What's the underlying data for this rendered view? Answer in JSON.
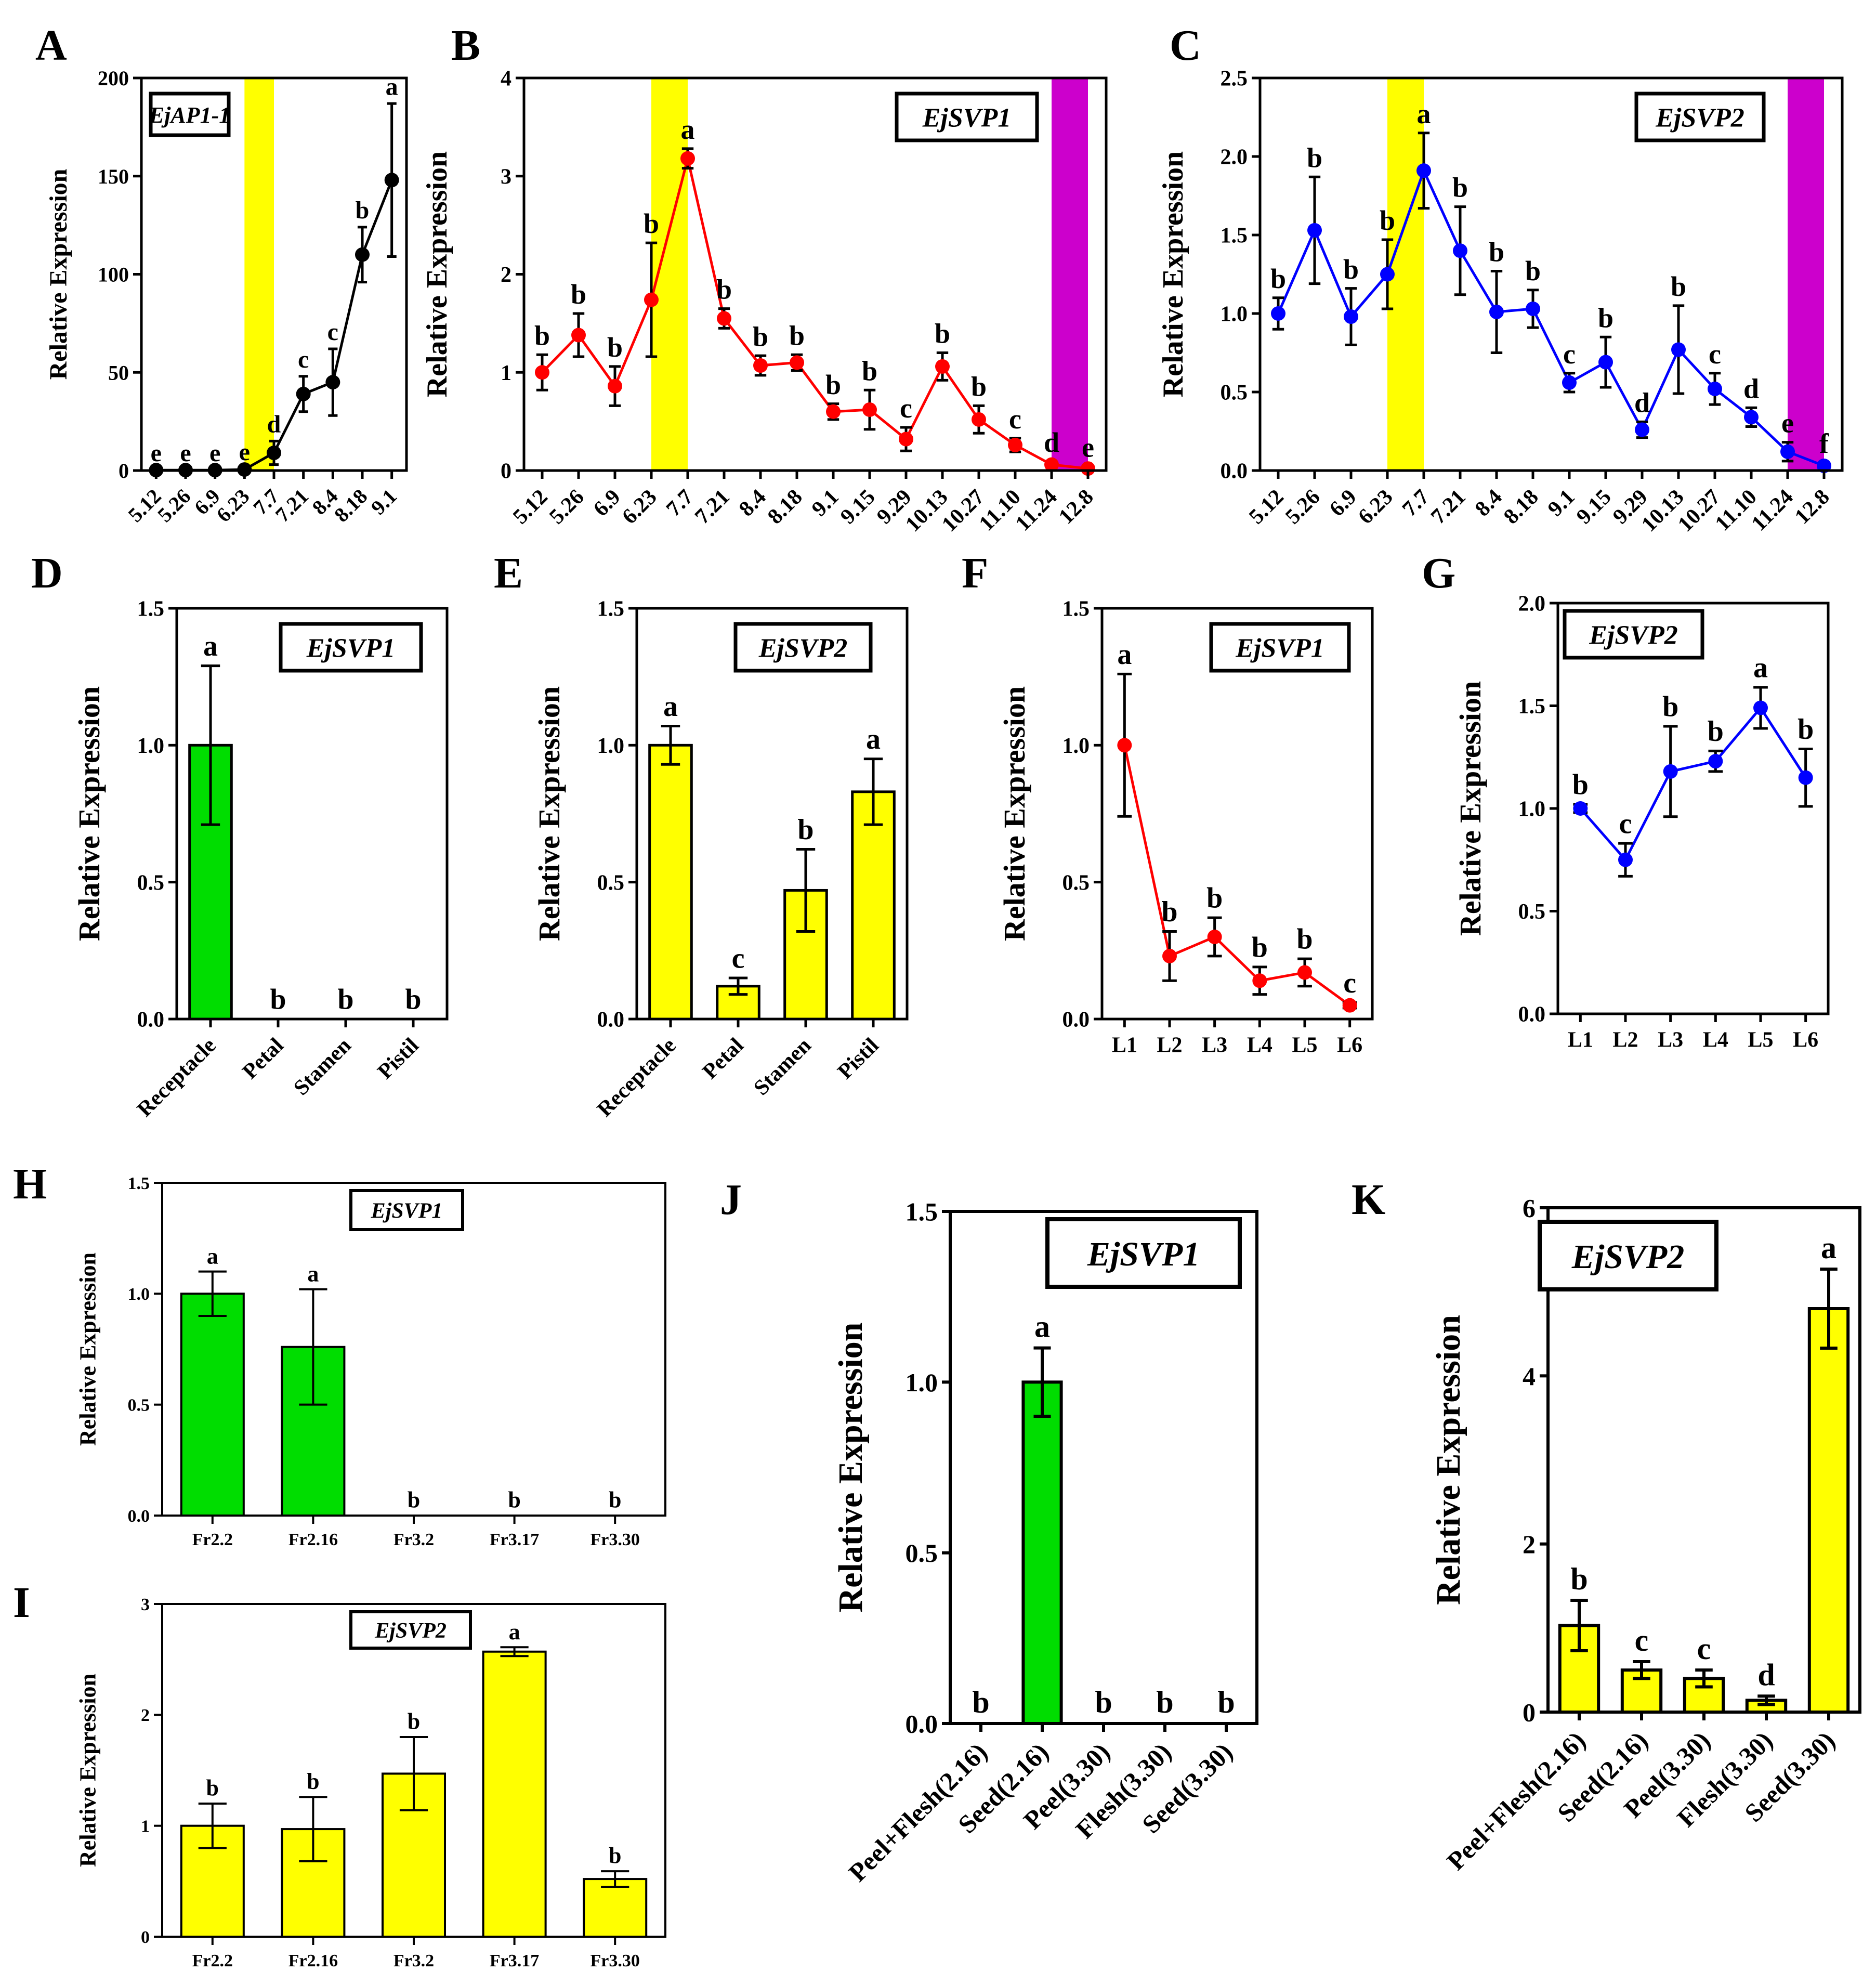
{
  "figure_title": "",
  "chart_data": [
    {
      "id": "A",
      "panel_label": "A",
      "type": "line",
      "gene": "EjAP1-1",
      "color": "#000000",
      "ylabel": "Relative Expression",
      "xlabel": "",
      "ylim": [
        0,
        200
      ],
      "yticks": [
        0,
        50,
        100,
        150,
        200
      ],
      "categories": [
        "5.12",
        "5.26",
        "6.9",
        "6.23",
        "7.7",
        "7.21",
        "8.4",
        "8.18",
        "9.1"
      ],
      "values": [
        0.2,
        0.2,
        0.2,
        0.5,
        9,
        39,
        45,
        110,
        148
      ],
      "errors": [
        0.1,
        0.1,
        0.1,
        0.3,
        6,
        9,
        17,
        14,
        39
      ],
      "letters": [
        "e",
        "e",
        "e",
        "e",
        "d",
        "c",
        "c",
        "b",
        "a"
      ],
      "highlights": [
        {
          "start": 3,
          "end": 4,
          "color": "#ffff00"
        }
      ]
    },
    {
      "id": "B",
      "panel_label": "B",
      "type": "line",
      "gene": "EjSVP1",
      "color": "#ff0000",
      "ylabel": "Relative Expression",
      "xlabel": "",
      "ylim": [
        0,
        4
      ],
      "yticks": [
        0,
        1,
        2,
        3,
        4
      ],
      "categories": [
        "5.12",
        "5.26",
        "6.9",
        "6.23",
        "7.7",
        "7.21",
        "8.4",
        "8.18",
        "9.1",
        "9.15",
        "9.29",
        "10.13",
        "10.27",
        "11.10",
        "11.24",
        "12.8"
      ],
      "values": [
        1.0,
        1.38,
        0.86,
        1.74,
        3.18,
        1.55,
        1.07,
        1.1,
        0.6,
        0.62,
        0.32,
        1.06,
        0.52,
        0.26,
        0.06,
        0.02
      ],
      "errors": [
        0.18,
        0.22,
        0.2,
        0.58,
        0.1,
        0.1,
        0.1,
        0.08,
        0.08,
        0.2,
        0.12,
        0.14,
        0.14,
        0.07,
        0.03,
        0.02
      ],
      "letters": [
        "b",
        "b",
        "b",
        "b",
        "a",
        "b",
        "b",
        "b",
        "b",
        "b",
        "c",
        "b",
        "b",
        "c",
        "d",
        "e"
      ],
      "highlights": [
        {
          "start": 3,
          "end": 4,
          "color": "#ffff00"
        },
        {
          "start": 14,
          "end": 15,
          "color": "#cc00cc"
        }
      ]
    },
    {
      "id": "C",
      "panel_label": "C",
      "type": "line",
      "gene": "EjSVP2",
      "color": "#0000ff",
      "ylabel": "Relative Expression",
      "xlabel": "",
      "ylim": [
        0,
        2.5
      ],
      "yticks": [
        "0.0",
        "0.5",
        "1.0",
        "1.5",
        "2.0",
        "2.5"
      ],
      "categories": [
        "5.12",
        "5.26",
        "6.9",
        "6.23",
        "7.7",
        "7.21",
        "8.4",
        "8.18",
        "9.1",
        "9.15",
        "9.29",
        "10.13",
        "10.27",
        "11.10",
        "11.24",
        "12.8"
      ],
      "values": [
        1.0,
        1.53,
        0.98,
        1.25,
        1.91,
        1.4,
        1.01,
        1.03,
        0.56,
        0.69,
        0.26,
        0.77,
        0.52,
        0.34,
        0.12,
        0.03
      ],
      "errors": [
        0.1,
        0.34,
        0.18,
        0.22,
        0.24,
        0.28,
        0.26,
        0.12,
        0.06,
        0.16,
        0.05,
        0.28,
        0.1,
        0.06,
        0.06,
        0.02
      ],
      "letters": [
        "b",
        "b",
        "b",
        "b",
        "a",
        "b",
        "b",
        "b",
        "c",
        "b",
        "d",
        "b",
        "c",
        "d",
        "e",
        "f"
      ],
      "highlights": [
        {
          "start": 3,
          "end": 4,
          "color": "#ffff00"
        },
        {
          "start": 14,
          "end": 15,
          "color": "#cc00cc"
        }
      ]
    },
    {
      "id": "D",
      "panel_label": "D",
      "type": "bar",
      "gene": "EjSVP1",
      "color": "#00dd00",
      "ylabel": "Relative Expression",
      "xlabel": "",
      "ylim": [
        0,
        1.5
      ],
      "yticks": [
        "0.0",
        "0.5",
        "1.0",
        "1.5"
      ],
      "categories": [
        "Receptacle",
        "Petal",
        "Stamen",
        "Pistil"
      ],
      "values": [
        1.0,
        0,
        0,
        0
      ],
      "errors": [
        0.29,
        0,
        0,
        0
      ],
      "letters": [
        "a",
        "b",
        "b",
        "b"
      ]
    },
    {
      "id": "E",
      "panel_label": "E",
      "type": "bar",
      "gene": "EjSVP2",
      "color": "#ffff00",
      "ylabel": "Relative Expression",
      "xlabel": "",
      "ylim": [
        0,
        1.5
      ],
      "yticks": [
        "0.0",
        "0.5",
        "1.0",
        "1.5"
      ],
      "categories": [
        "Receptacle",
        "Petal",
        "Stamen",
        "Pistil"
      ],
      "values": [
        1.0,
        0.12,
        0.47,
        0.83
      ],
      "errors": [
        0.07,
        0.03,
        0.15,
        0.12
      ],
      "letters": [
        "a",
        "c",
        "b",
        "a"
      ]
    },
    {
      "id": "F",
      "panel_label": "F",
      "type": "line",
      "gene": "EjSVP1",
      "color": "#ff0000",
      "ylabel": "Relative Expression",
      "xlabel": "",
      "ylim": [
        0,
        1.5
      ],
      "yticks": [
        "0.0",
        "0.5",
        "1.0",
        "1.5"
      ],
      "categories": [
        "L1",
        "L2",
        "L3",
        "L4",
        "L5",
        "L6"
      ],
      "values": [
        1.0,
        0.23,
        0.3,
        0.14,
        0.17,
        0.05
      ],
      "errors": [
        0.26,
        0.09,
        0.07,
        0.05,
        0.05,
        0.01
      ],
      "letters": [
        "a",
        "b",
        "b",
        "b",
        "b",
        "c"
      ]
    },
    {
      "id": "G",
      "panel_label": "G",
      "type": "line",
      "gene": "EjSVP2",
      "color": "#0000ff",
      "ylabel": "Relative Expression",
      "xlabel": "",
      "ylim": [
        0,
        2.0
      ],
      "yticks": [
        "0.0",
        "0.5",
        "1.0",
        "1.5",
        "2.0"
      ],
      "categories": [
        "L1",
        "L2",
        "L3",
        "L4",
        "L5",
        "L6"
      ],
      "values": [
        1.0,
        0.75,
        1.18,
        1.23,
        1.49,
        1.15
      ],
      "errors": [
        0.02,
        0.08,
        0.22,
        0.05,
        0.1,
        0.14
      ],
      "letters": [
        "b",
        "c",
        "b",
        "b",
        "a",
        "b"
      ]
    },
    {
      "id": "H",
      "panel_label": "H",
      "type": "bar",
      "gene": "EjSVP1",
      "color": "#00dd00",
      "ylabel": "Relative Expression",
      "xlabel": "",
      "ylim": [
        0,
        1.5
      ],
      "yticks": [
        "0.0",
        "0.5",
        "1.0",
        "1.5"
      ],
      "categories": [
        "Fr2.2",
        "Fr2.16",
        "Fr3.2",
        "Fr3.17",
        "Fr3.30"
      ],
      "values": [
        1.0,
        0.76,
        0,
        0,
        0
      ],
      "errors": [
        0.1,
        0.26,
        0,
        0,
        0
      ],
      "letters": [
        "a",
        "a",
        "b",
        "b",
        "b"
      ]
    },
    {
      "id": "I",
      "panel_label": "I",
      "type": "bar",
      "gene": "EjSVP2",
      "color": "#ffff00",
      "ylabel": "Relative Expression",
      "xlabel": "",
      "ylim": [
        0,
        3
      ],
      "yticks": [
        0,
        1,
        2,
        3
      ],
      "categories": [
        "Fr2.2",
        "Fr2.16",
        "Fr3.2",
        "Fr3.17",
        "Fr3.30"
      ],
      "values": [
        1.0,
        0.97,
        1.47,
        2.57,
        0.52
      ],
      "errors": [
        0.2,
        0.29,
        0.33,
        0.04,
        0.07
      ],
      "letters": [
        "b",
        "b",
        "b",
        "a",
        "b"
      ]
    },
    {
      "id": "J",
      "panel_label": "J",
      "type": "bar",
      "gene": "EjSVP1",
      "color": "#00dd00",
      "ylabel": "Relative Expression",
      "xlabel": "",
      "ylim": [
        0,
        1.5
      ],
      "yticks": [
        "0.0",
        "0.5",
        "1.0",
        "1.5"
      ],
      "categories": [
        "Peel+Flesh(2.16)",
        "Seed(2.16)",
        "Peel(3.30)",
        "Flesh(3.30)",
        "Seed(3.30)"
      ],
      "values": [
        0,
        1.0,
        0,
        0,
        0
      ],
      "errors": [
        0,
        0.1,
        0,
        0,
        0
      ],
      "letters": [
        "b",
        "a",
        "b",
        "b",
        "b"
      ]
    },
    {
      "id": "K",
      "panel_label": "K",
      "type": "bar",
      "gene": "EjSVP2",
      "color": "#ffff00",
      "ylabel": "Relative Expression",
      "xlabel": "",
      "ylim": [
        0,
        6
      ],
      "yticks": [
        0,
        2,
        4,
        6
      ],
      "categories": [
        "Peel+Flesh(2.16)",
        "Seed(2.16)",
        "Peel(3.30)",
        "Flesh(3.30)",
        "Seed(3.30)"
      ],
      "values": [
        1.03,
        0.5,
        0.4,
        0.14,
        4.8
      ],
      "errors": [
        0.3,
        0.1,
        0.1,
        0.05,
        0.47
      ],
      "letters": [
        "b",
        "c",
        "c",
        "d",
        "a"
      ]
    }
  ]
}
